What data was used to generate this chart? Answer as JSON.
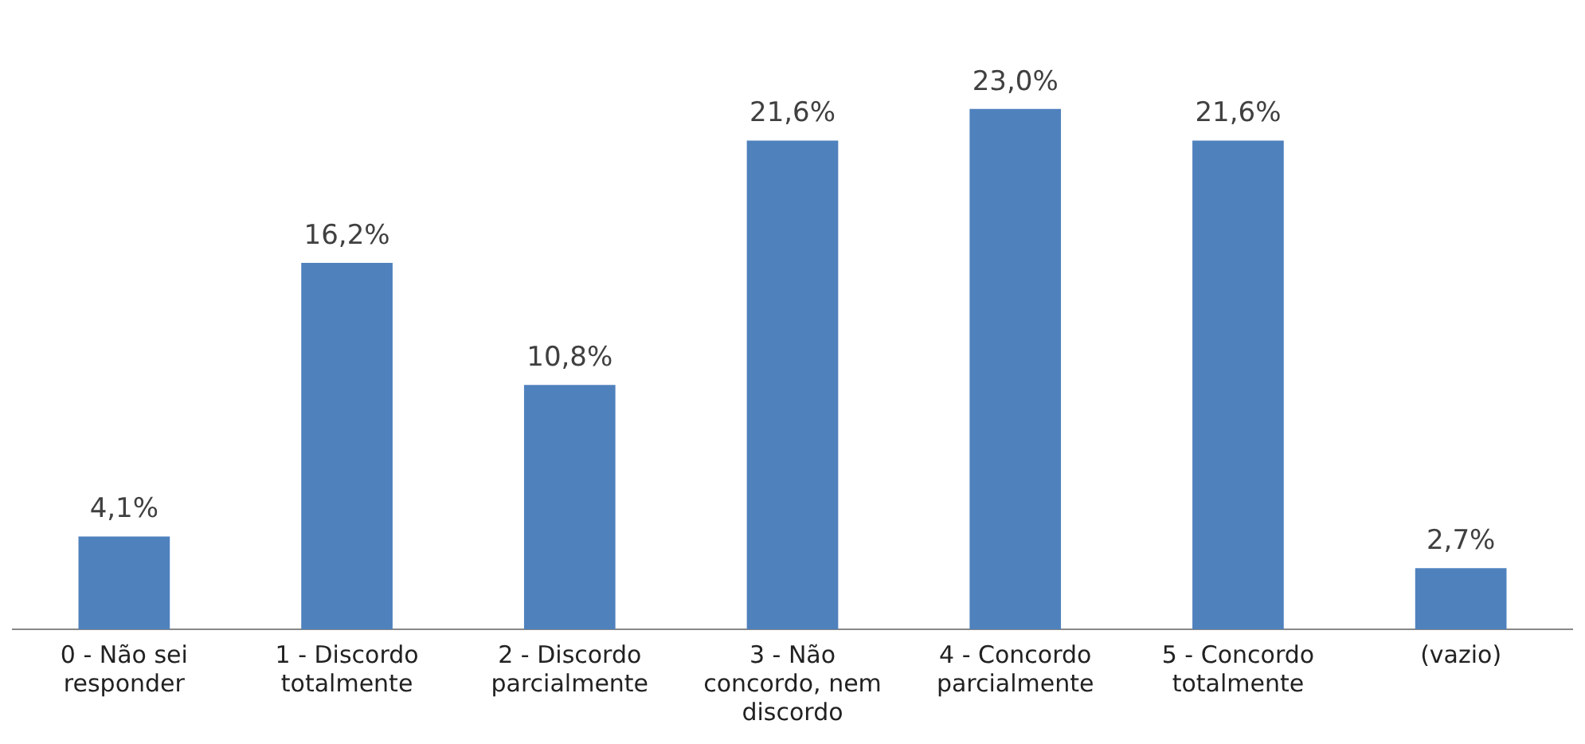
{
  "chart_data": {
    "type": "bar",
    "categories": [
      "0 - Não sei responder",
      "1 - Discordo totalmente",
      "2 - Discordo parcialmente",
      "3 - Não concordo, nem discordo",
      "4 - Concordo parcialmente",
      "5 - Concordo totalmente",
      "(vazio)"
    ],
    "values": [
      4.1,
      16.2,
      10.8,
      21.6,
      23.0,
      21.6,
      2.7
    ],
    "value_labels": [
      "4,1%",
      "16,2%",
      "10,8%",
      "21,6%",
      "23,0%",
      "21,6%",
      "2,7%"
    ],
    "color": "#4f81bd",
    "grid": false,
    "legend": false,
    "tick_labels": "x"
  }
}
